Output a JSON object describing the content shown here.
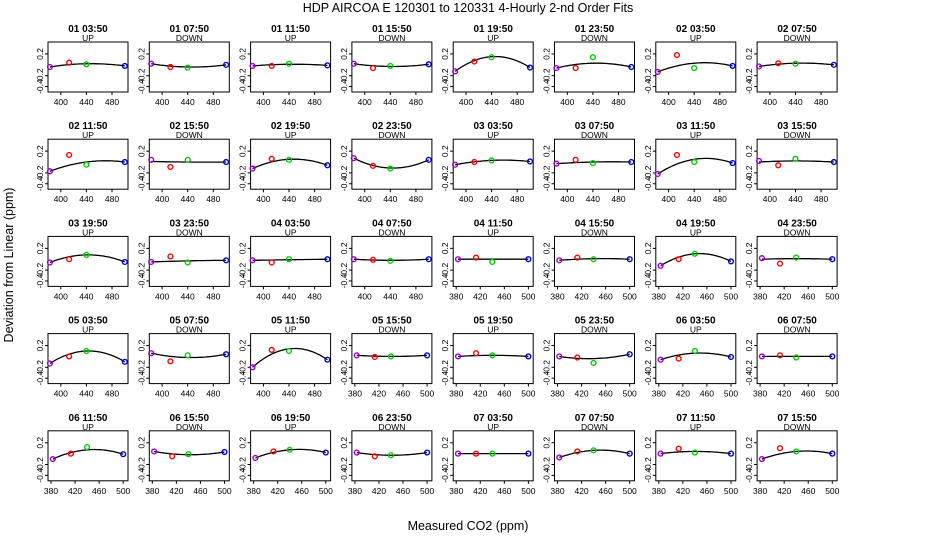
{
  "chart_data": {
    "type": "scatter",
    "title": "HDP    AIRCOA E    120301 to 120331    4-Hourly 2-nd Order Fits",
    "xlabel": "Measured CO2 (ppm)",
    "ylabel": "Deviation from Linear (ppm)",
    "ylim": [
      -0.5,
      0.42
    ],
    "yticks": [
      "0.2",
      "-0.2",
      "-0.4"
    ],
    "ytick_values": [
      0.2,
      -0.2,
      -0.4
    ],
    "point_colors": [
      "#9900cc",
      "#ff0000",
      "#00cc00",
      "#0000cc"
    ],
    "xaxes": {
      "A": {
        "xlim": [
          380,
          505
        ],
        "ticks": [
          400,
          440,
          480
        ],
        "labels": [
          "400",
          "440",
          "480"
        ]
      },
      "B": {
        "xlim": [
          375,
          508
        ],
        "ticks": [
          380,
          420,
          460,
          500
        ],
        "labels": [
          "380",
          "420",
          "460",
          "500"
        ]
      }
    },
    "panels": [
      {
        "title": "01 03:50",
        "mode": "UP",
        "axis": "A",
        "x": [
          383,
          413,
          440,
          500
        ],
        "y": [
          -0.04,
          0.04,
          0.01,
          -0.02
        ],
        "fit": [
          -0.04,
          0.02,
          -0.02
        ]
      },
      {
        "title": "01 07:50",
        "mode": "DOWN",
        "axis": "A",
        "x": [
          383,
          413,
          440,
          500
        ],
        "y": [
          0.02,
          -0.04,
          -0.05,
          0.0
        ],
        "fit": [
          0.02,
          -0.04,
          0.0
        ]
      },
      {
        "title": "01 11:50",
        "mode": "UP",
        "axis": "A",
        "x": [
          383,
          413,
          440,
          500
        ],
        "y": [
          -0.02,
          -0.02,
          0.02,
          -0.01
        ],
        "fit": [
          -0.02,
          0.01,
          -0.01
        ]
      },
      {
        "title": "01 15:50",
        "mode": "DOWN",
        "axis": "A",
        "x": [
          383,
          413,
          440,
          500
        ],
        "y": [
          0.02,
          -0.06,
          -0.02,
          0.01
        ],
        "fit": [
          0.02,
          -0.03,
          0.01
        ]
      },
      {
        "title": "01 19:50",
        "mode": "UP",
        "axis": "A",
        "x": [
          383,
          413,
          440,
          500
        ],
        "y": [
          -0.12,
          0.06,
          0.14,
          -0.05
        ],
        "fit": [
          -0.12,
          0.15,
          -0.05
        ]
      },
      {
        "title": "01 23:50",
        "mode": "DOWN",
        "axis": "A",
        "x": [
          383,
          413,
          440,
          500
        ],
        "y": [
          -0.06,
          -0.06,
          0.14,
          -0.04
        ],
        "fit": [
          -0.06,
          0.03,
          -0.04
        ]
      },
      {
        "title": "02 03:50",
        "mode": "UP",
        "axis": "A",
        "x": [
          383,
          413,
          440,
          500
        ],
        "y": [
          -0.13,
          0.18,
          -0.06,
          -0.02
        ],
        "fit": [
          -0.13,
          0.03,
          -0.02
        ]
      },
      {
        "title": "02 07:50",
        "mode": "DOWN",
        "axis": "A",
        "x": [
          383,
          413,
          440,
          500
        ],
        "y": [
          -0.03,
          0.03,
          0.02,
          0.0
        ],
        "fit": [
          -0.03,
          0.03,
          0.0
        ]
      },
      {
        "title": "02 11:50",
        "mode": "UP",
        "axis": "A",
        "x": [
          383,
          413,
          440,
          500
        ],
        "y": [
          -0.17,
          0.13,
          -0.05,
          0.0
        ],
        "fit": [
          -0.17,
          0.0,
          0.0
        ]
      },
      {
        "title": "02 15:50",
        "mode": "DOWN",
        "axis": "A",
        "x": [
          383,
          413,
          440,
          500
        ],
        "y": [
          0.04,
          -0.09,
          0.04,
          0.0
        ],
        "fit": [
          0.01,
          0.0,
          0.0
        ]
      },
      {
        "title": "02 19:50",
        "mode": "UP",
        "axis": "A",
        "x": [
          383,
          413,
          440,
          500
        ],
        "y": [
          -0.12,
          0.06,
          0.04,
          -0.06
        ],
        "fit": [
          -0.12,
          0.05,
          -0.06
        ]
      },
      {
        "title": "02 23:50",
        "mode": "DOWN",
        "axis": "A",
        "x": [
          383,
          413,
          440,
          500
        ],
        "y": [
          0.07,
          -0.07,
          -0.12,
          0.04
        ],
        "fit": [
          0.07,
          -0.11,
          0.04
        ]
      },
      {
        "title": "03 03:50",
        "mode": "UP",
        "axis": "A",
        "x": [
          383,
          413,
          440,
          500
        ],
        "y": [
          -0.05,
          0.0,
          0.03,
          0.01
        ],
        "fit": [
          -0.05,
          0.03,
          0.01
        ]
      },
      {
        "title": "03 07:50",
        "mode": "DOWN",
        "axis": "A",
        "x": [
          383,
          413,
          440,
          500
        ],
        "y": [
          -0.03,
          0.04,
          -0.02,
          0.0
        ],
        "fit": [
          -0.03,
          0.0,
          0.0
        ]
      },
      {
        "title": "03 11:50",
        "mode": "UP",
        "axis": "A",
        "x": [
          383,
          413,
          440,
          500
        ],
        "y": [
          -0.22,
          0.13,
          0.0,
          -0.02
        ],
        "fit": [
          -0.22,
          0.05,
          -0.02
        ]
      },
      {
        "title": "03 15:50",
        "mode": "DOWN",
        "axis": "A",
        "x": [
          383,
          413,
          440,
          500
        ],
        "y": [
          0.02,
          -0.06,
          0.06,
          0.0
        ],
        "fit": [
          0.0,
          0.02,
          0.0
        ]
      },
      {
        "title": "03 19:50",
        "mode": "UP",
        "axis": "A",
        "x": [
          383,
          413,
          440,
          500
        ],
        "y": [
          -0.06,
          0.0,
          0.08,
          -0.05
        ],
        "fit": [
          -0.06,
          0.08,
          -0.05
        ]
      },
      {
        "title": "03 23:50",
        "mode": "DOWN",
        "axis": "A",
        "x": [
          383,
          413,
          440,
          500
        ],
        "y": [
          -0.05,
          0.05,
          -0.06,
          -0.02
        ],
        "fit": [
          -0.05,
          -0.03,
          -0.02
        ]
      },
      {
        "title": "04 03:50",
        "mode": "UP",
        "axis": "A",
        "x": [
          383,
          413,
          440,
          500
        ],
        "y": [
          -0.02,
          -0.06,
          0.0,
          0.0
        ],
        "fit": [
          -0.02,
          -0.01,
          0.0
        ]
      },
      {
        "title": "04 07:50",
        "mode": "DOWN",
        "axis": "A",
        "x": [
          383,
          413,
          440,
          500
        ],
        "y": [
          0.0,
          -0.01,
          -0.03,
          0.0
        ],
        "fit": [
          0.0,
          -0.02,
          0.0
        ]
      },
      {
        "title": "04 11:50",
        "mode": "UP",
        "axis": "B",
        "x": [
          383,
          413,
          440,
          500
        ],
        "y": [
          0.0,
          0.03,
          -0.05,
          0.0
        ],
        "fit": [
          0.0,
          0.0,
          0.0
        ]
      },
      {
        "title": "04 15:50",
        "mode": "DOWN",
        "axis": "B",
        "x": [
          383,
          413,
          440,
          500
        ],
        "y": [
          -0.02,
          0.03,
          0.0,
          0.0
        ],
        "fit": [
          -0.02,
          0.01,
          0.0
        ]
      },
      {
        "title": "04 19:50",
        "mode": "UP",
        "axis": "B",
        "x": [
          383,
          413,
          440,
          500
        ],
        "y": [
          -0.12,
          0.0,
          0.1,
          -0.04
        ],
        "fit": [
          -0.12,
          0.1,
          -0.04
        ]
      },
      {
        "title": "04 23:50",
        "mode": "DOWN",
        "axis": "B",
        "x": [
          383,
          413,
          440,
          500
        ],
        "y": [
          0.02,
          -0.08,
          0.03,
          0.0
        ],
        "fit": [
          0.0,
          0.01,
          0.0
        ]
      },
      {
        "title": "05 03:50",
        "mode": "UP",
        "axis": "A",
        "x": [
          383,
          413,
          440,
          500
        ],
        "y": [
          -0.13,
          0.0,
          0.1,
          -0.1
        ],
        "fit": [
          -0.13,
          0.1,
          -0.1
        ]
      },
      {
        "title": "05 07:50",
        "mode": "DOWN",
        "axis": "A",
        "x": [
          383,
          413,
          440,
          500
        ],
        "y": [
          0.06,
          -0.09,
          0.02,
          0.04
        ],
        "fit": [
          0.06,
          -0.02,
          0.04
        ]
      },
      {
        "title": "05 11:50",
        "mode": "UP",
        "axis": "A",
        "x": [
          383,
          413,
          440,
          500
        ],
        "y": [
          -0.2,
          0.12,
          0.1,
          -0.06
        ],
        "fit": [
          -0.2,
          0.14,
          -0.06
        ]
      },
      {
        "title": "05 15:50",
        "mode": "DOWN",
        "axis": "B",
        "x": [
          383,
          413,
          440,
          500
        ],
        "y": [
          0.02,
          -0.01,
          0.0,
          0.02
        ],
        "fit": [
          0.02,
          0.0,
          0.02
        ]
      },
      {
        "title": "05 19:50",
        "mode": "UP",
        "axis": "B",
        "x": [
          383,
          413,
          440,
          500
        ],
        "y": [
          0.0,
          0.06,
          0.02,
          0.0
        ],
        "fit": [
          0.0,
          0.02,
          0.0
        ]
      },
      {
        "title": "05 23:50",
        "mode": "DOWN",
        "axis": "B",
        "x": [
          383,
          413,
          440,
          500
        ],
        "y": [
          0.0,
          -0.02,
          -0.12,
          0.04
        ],
        "fit": [
          0.0,
          -0.04,
          0.04
        ]
      },
      {
        "title": "06 03:50",
        "mode": "UP",
        "axis": "B",
        "x": [
          383,
          413,
          440,
          500
        ],
        "y": [
          -0.06,
          -0.04,
          0.1,
          -0.01
        ],
        "fit": [
          -0.06,
          0.06,
          -0.01
        ]
      },
      {
        "title": "06 07:50",
        "mode": "DOWN",
        "axis": "B",
        "x": [
          383,
          413,
          440,
          500
        ],
        "y": [
          0.0,
          0.02,
          -0.02,
          0.0
        ],
        "fit": [
          0.0,
          0.0,
          0.0
        ]
      },
      {
        "title": "06 11:50",
        "mode": "UP",
        "axis": "B",
        "x": [
          383,
          413,
          440,
          500
        ],
        "y": [
          -0.1,
          0.0,
          0.12,
          -0.01
        ],
        "fit": [
          -0.1,
          0.07,
          -0.01
        ]
      },
      {
        "title": "06 15:50",
        "mode": "DOWN",
        "axis": "B",
        "x": [
          383,
          413,
          440,
          500
        ],
        "y": [
          0.04,
          -0.05,
          -0.01,
          0.03
        ],
        "fit": [
          0.04,
          -0.02,
          0.03
        ]
      },
      {
        "title": "06 19:50",
        "mode": "UP",
        "axis": "B",
        "x": [
          383,
          413,
          440,
          500
        ],
        "y": [
          -0.08,
          0.04,
          0.07,
          0.02
        ],
        "fit": [
          -0.08,
          0.07,
          0.02
        ]
      },
      {
        "title": "06 23:50",
        "mode": "DOWN",
        "axis": "B",
        "x": [
          383,
          413,
          440,
          500
        ],
        "y": [
          0.02,
          -0.05,
          -0.03,
          0.02
        ],
        "fit": [
          0.02,
          -0.03,
          0.02
        ]
      },
      {
        "title": "07 03:50",
        "mode": "UP",
        "axis": "B",
        "x": [
          383,
          413,
          440,
          500
        ],
        "y": [
          0.0,
          0.0,
          0.0,
          0.0
        ],
        "fit": [
          0.0,
          0.0,
          0.0
        ]
      },
      {
        "title": "07 07:50",
        "mode": "DOWN",
        "axis": "B",
        "x": [
          383,
          413,
          440,
          500
        ],
        "y": [
          -0.07,
          0.04,
          0.06,
          0.0
        ],
        "fit": [
          -0.07,
          0.06,
          0.0
        ]
      },
      {
        "title": "07 11:50",
        "mode": "UP",
        "axis": "B",
        "x": [
          383,
          413,
          440,
          500
        ],
        "y": [
          0.0,
          0.09,
          0.02,
          0.0
        ],
        "fit": [
          0.0,
          0.04,
          0.0
        ]
      },
      {
        "title": "07 15:50",
        "mode": "DOWN",
        "axis": "B",
        "x": [
          383,
          413,
          440,
          500
        ],
        "y": [
          -0.1,
          0.1,
          0.04,
          0.0
        ],
        "fit": [
          -0.1,
          0.04,
          0.0
        ]
      }
    ]
  }
}
